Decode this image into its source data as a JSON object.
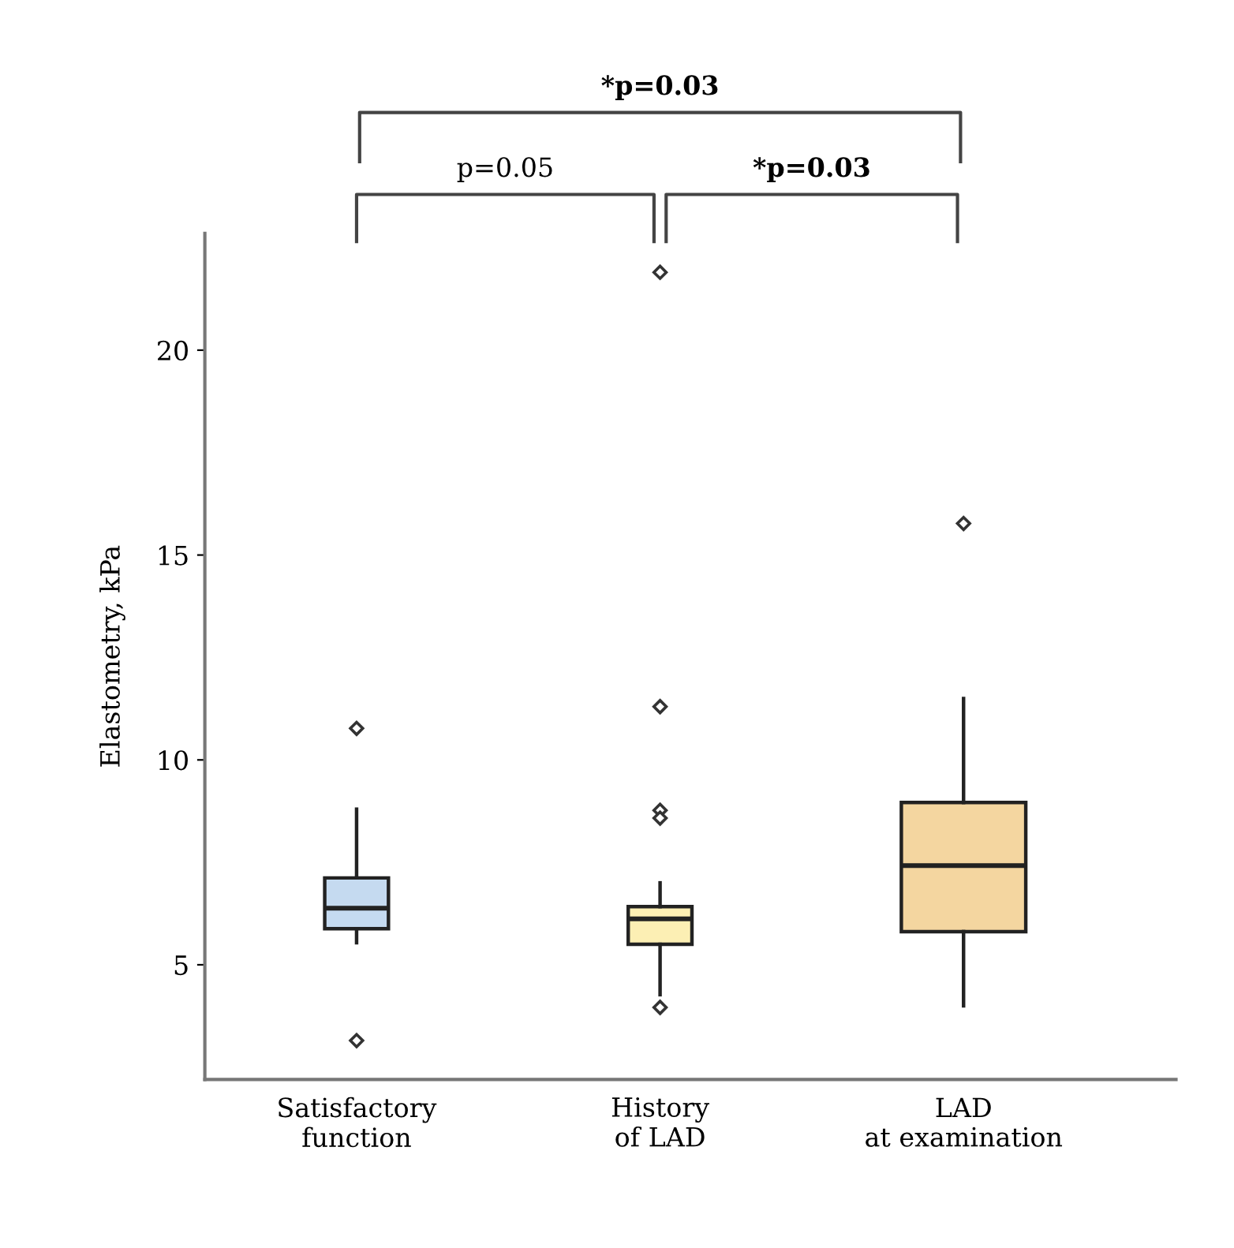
{
  "chart_data": {
    "type": "box",
    "ylabel": "Elastometry, kPa",
    "categories": [
      "Satisfactory\nfunction",
      "History\nof LAD",
      "LAD\nat examination"
    ],
    "colors": [
      "#c5daf0",
      "#fcefb4",
      "#f4d6a0"
    ],
    "boxes": [
      {
        "low": 5.54,
        "q1": 5.88,
        "median": 6.38,
        "q3": 7.12,
        "high": 8.8,
        "outliers": [
          10.77,
          3.15
        ]
      },
      {
        "low": 4.27,
        "q1": 5.5,
        "median": 6.12,
        "q3": 6.42,
        "high": 7.0,
        "outliers": [
          21.9,
          11.3,
          8.77,
          8.58,
          3.96
        ]
      },
      {
        "low": 4.0,
        "q1": 5.81,
        "median": 7.42,
        "q3": 8.96,
        "high": 11.5,
        "outliers": [
          15.77
        ]
      }
    ],
    "ylim": [
      2.2,
      22.85
    ],
    "yticks": [
      5,
      10,
      15,
      20
    ],
    "annotations": [
      "p=0.05",
      "*p=0.03",
      "*p=0.03"
    ],
    "grid": false,
    "marker": "diamond"
  }
}
